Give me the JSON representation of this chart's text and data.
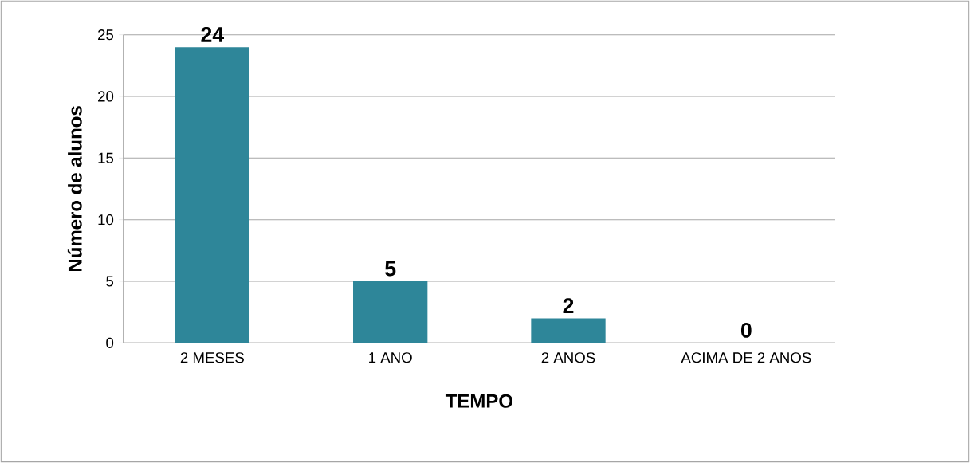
{
  "chart_data": {
    "type": "bar",
    "xlabel": "TEMPO",
    "ylabel": "Número de alunos",
    "categories": [
      "2 MESES",
      "1 ANO",
      "2 ANOS",
      "ACIMA DE 2 ANOS"
    ],
    "values": [
      24,
      5,
      2,
      0
    ],
    "color": "#2e8699",
    "ylim": [
      0,
      25
    ],
    "yticks": [
      0,
      5,
      10,
      15,
      20,
      25
    ],
    "grid": "y",
    "data_labels": true
  }
}
